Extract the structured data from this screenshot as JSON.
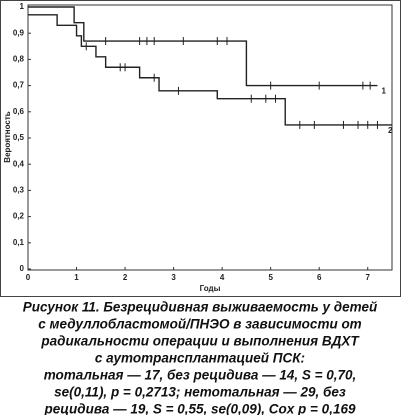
{
  "chart_data": {
    "type": "step",
    "xlabel": "Годы",
    "ylabel": "Вероятность",
    "xlim": [
      0,
      7.5
    ],
    "ylim": [
      0,
      1
    ],
    "xticks": [
      0,
      1,
      2,
      3,
      4,
      5,
      6,
      7
    ],
    "yticks": [
      0,
      {
        "value": 0.1,
        "label": "0,1"
      },
      {
        "value": 0.2,
        "label": "0,2"
      },
      {
        "value": 0.3,
        "label": "0,3"
      },
      {
        "value": 0.4,
        "label": "0,4"
      },
      {
        "value": 0.5,
        "label": "0,5"
      },
      {
        "value": 0.6,
        "label": "0,6"
      },
      {
        "value": 0.7,
        "label": "0,7"
      },
      {
        "value": 0.8,
        "label": "0,8"
      },
      {
        "value": 0.9,
        "label": "0,9"
      },
      1
    ],
    "series": [
      {
        "name": "1",
        "color": "#222222",
        "x": [
          0,
          0.95,
          1.15,
          4.5,
          7.2
        ],
        "values": [
          1.0,
          0.94,
          0.87,
          0.7,
          0.7
        ],
        "censored": [
          1.6,
          2.3,
          2.45,
          2.6,
          3.2,
          3.9,
          4.1,
          5.0,
          6.0,
          6.9,
          7.05
        ]
      },
      {
        "name": "2",
        "color": "#222222",
        "x": [
          0,
          0.6,
          1.0,
          1.1,
          1.4,
          1.6,
          2.3,
          2.7,
          3.9,
          5.3,
          7.5
        ],
        "values": [
          0.97,
          0.93,
          0.89,
          0.85,
          0.81,
          0.77,
          0.73,
          0.68,
          0.65,
          0.55,
          0.55
        ],
        "censored": [
          1.2,
          1.9,
          2.0,
          2.6,
          3.1,
          4.6,
          4.9,
          5.1,
          5.6,
          5.9,
          6.5,
          6.8,
          7.0,
          7.2
        ]
      }
    ]
  },
  "caption": [
    "Рисунок 11. Безрецидивная выживаемость у детей",
    "с медуллобластомой/ПНЭО в зависимости от",
    "радикальности операции и выполнения ВДХТ",
    "с аутотрансплантацией ПСК:",
    "тотальная — 17, без рецидива — 14, S = 0,70,",
    "se(0,11), p = 0,2713; нетотальная — 29, без",
    "рецидива — 19, S = 0,55,  se(0,09), Cox p = 0,169"
  ]
}
